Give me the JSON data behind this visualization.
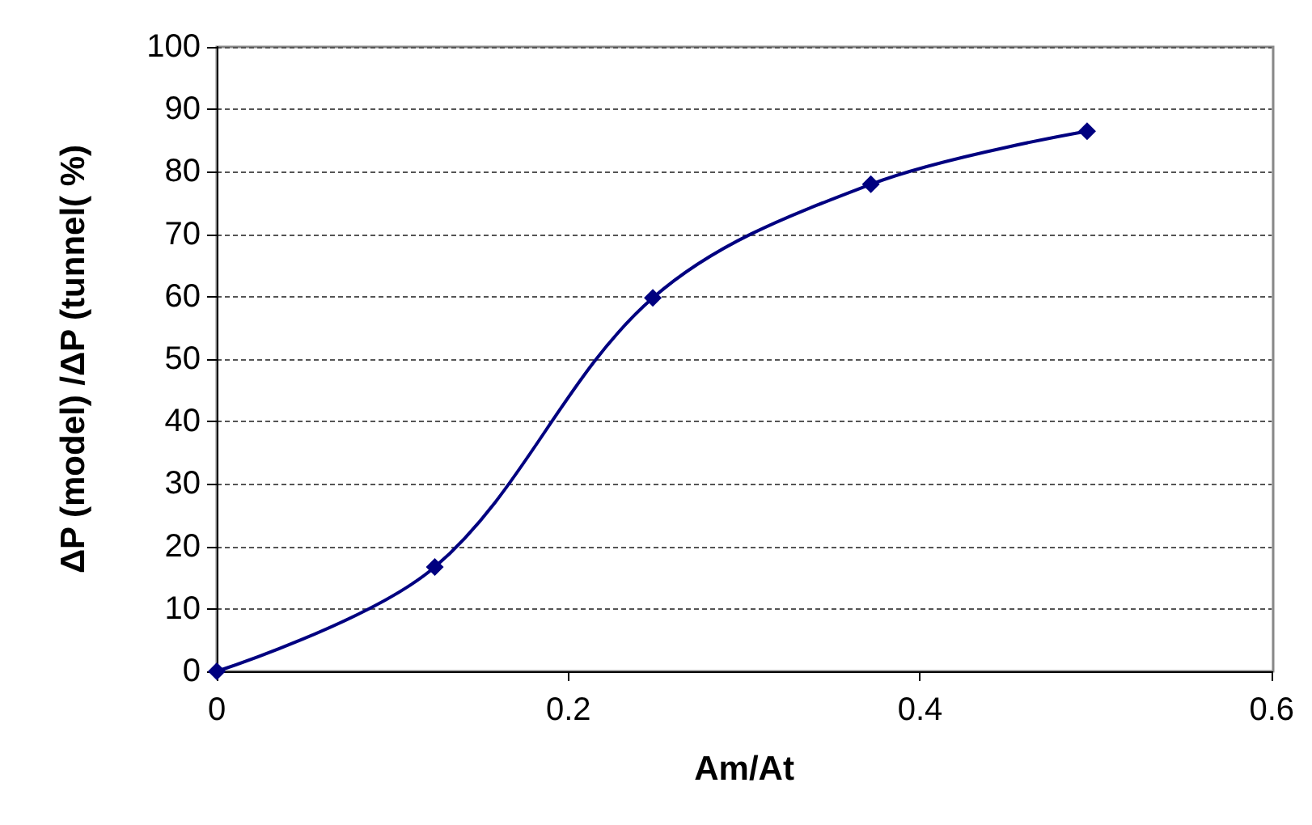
{
  "chart_data": {
    "type": "line",
    "xlabel": "Am/At",
    "ylabel": "ΔP (model) /ΔP (tunnel( %)",
    "x": [
      0,
      0.124,
      0.248,
      0.372,
      0.495
    ],
    "series": [
      {
        "color": "#000080",
        "values": [
          0,
          16.7,
          59.8,
          78,
          86.5
        ]
      }
    ],
    "xlim": [
      0,
      0.6
    ],
    "xticks": [
      0,
      0.2,
      0.4,
      0.6
    ],
    "ylim": [
      0,
      100
    ],
    "yticks": [
      0,
      10,
      20,
      30,
      40,
      50,
      60,
      70,
      80,
      90,
      100
    ],
    "grid": "y",
    "marker": "diamond",
    "line_style": "solid"
  }
}
